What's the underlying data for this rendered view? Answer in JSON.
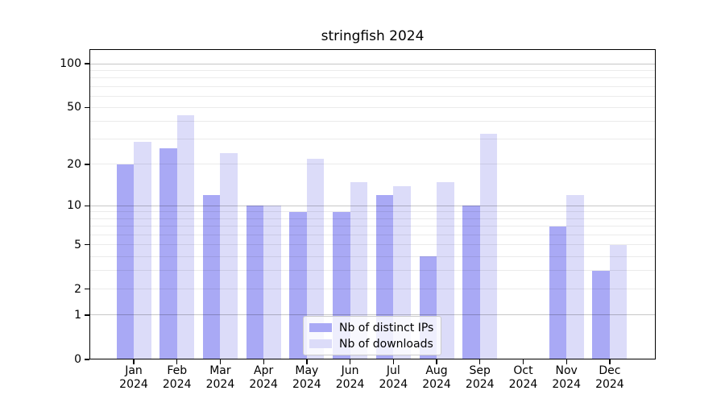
{
  "chart_data": {
    "type": "bar",
    "title": "stringfish 2024",
    "categories": [
      "Jan",
      "Feb",
      "Mar",
      "Apr",
      "May",
      "Jun",
      "Jul",
      "Aug",
      "Sep",
      "Oct",
      "Nov",
      "Dec"
    ],
    "year_label": "2024",
    "series": [
      {
        "name": "Nb of distinct IPs",
        "color": "#a9a9f5",
        "values": [
          20,
          26,
          12,
          10,
          9,
          9,
          12,
          4,
          10,
          0,
          7,
          3
        ]
      },
      {
        "name": "Nb of downloads",
        "color": "#dcdcf9",
        "values": [
          29,
          44,
          24,
          10,
          22,
          15,
          14,
          15,
          33,
          0,
          12,
          5
        ]
      }
    ],
    "xlabel": "",
    "ylabel": "",
    "yscale": "log1p",
    "ylim": [
      0,
      126
    ],
    "y_ticks": [
      0,
      1,
      2,
      5,
      10,
      20,
      50,
      100
    ],
    "y_major_gridlines": [
      1,
      10,
      100
    ],
    "y_minor_gridlines": [
      2,
      3,
      4,
      5,
      6,
      7,
      8,
      9,
      20,
      30,
      40,
      50,
      60,
      70,
      80,
      90
    ],
    "grid": true,
    "legend_position": "lower center"
  }
}
